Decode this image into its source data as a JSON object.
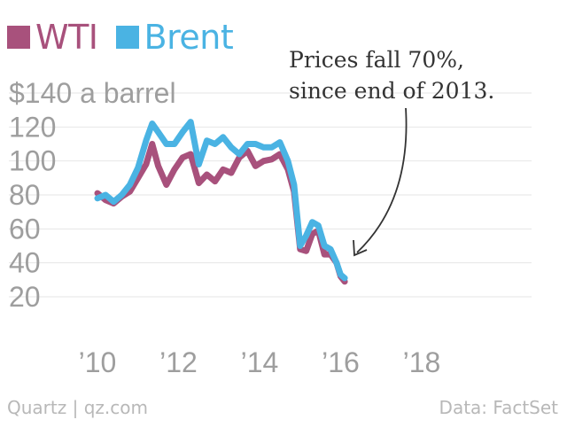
{
  "legend": [
    {
      "name": "WTI",
      "color": "#a8517c"
    },
    {
      "name": "Brent",
      "color": "#4ab3e3"
    }
  ],
  "annotation": {
    "line1": "Prices fall 70%,",
    "line2": "since end of 2013."
  },
  "footer": {
    "source": "Quartz | qz.com",
    "data_credit": "Data: FactSet"
  },
  "colors": {
    "wti": "#a8517c",
    "brent": "#4ab3e3",
    "axis_text": "#9e9e9e",
    "grid": "#e6e6e6",
    "arrow": "#333333"
  },
  "chart_data": {
    "type": "line",
    "title": "",
    "xlabel": "",
    "ylabel": "",
    "ylim": [
      20,
      140
    ],
    "xlim": [
      2010,
      2018.5
    ],
    "y_ticks": [
      {
        "value": 140,
        "label": "$140 a barrel"
      },
      {
        "value": 120,
        "label": "120"
      },
      {
        "value": 100,
        "label": "100"
      },
      {
        "value": 80,
        "label": "80"
      },
      {
        "value": 60,
        "label": "60"
      },
      {
        "value": 40,
        "label": "40"
      },
      {
        "value": 20,
        "label": "20"
      }
    ],
    "x_ticks": [
      {
        "value": 2010,
        "label": "’10"
      },
      {
        "value": 2012,
        "label": "’12"
      },
      {
        "value": 2014,
        "label": "’14"
      },
      {
        "value": 2016,
        "label": "’16"
      },
      {
        "value": 2018,
        "label": "’18"
      }
    ],
    "grid": true,
    "legend_position": "top-left",
    "series": [
      {
        "name": "WTI",
        "color": "#a8517c",
        "x": [
          2010.0,
          2010.2,
          2010.4,
          2010.6,
          2010.8,
          2011.0,
          2011.2,
          2011.35,
          2011.5,
          2011.7,
          2011.9,
          2012.1,
          2012.3,
          2012.5,
          2012.7,
          2012.9,
          2013.1,
          2013.3,
          2013.5,
          2013.7,
          2013.9,
          2014.1,
          2014.3,
          2014.5,
          2014.7,
          2014.85,
          2015.0,
          2015.15,
          2015.3,
          2015.45,
          2015.6,
          2015.75,
          2015.9,
          2016.0,
          2016.1
        ],
        "y": [
          81,
          77,
          75,
          79,
          82,
          90,
          98,
          110,
          97,
          86,
          95,
          102,
          104,
          87,
          92,
          88,
          95,
          93,
          102,
          106,
          97,
          100,
          101,
          104,
          95,
          82,
          48,
          47,
          57,
          59,
          45,
          45,
          40,
          32,
          29
        ]
      },
      {
        "name": "Brent",
        "color": "#4ab3e3",
        "x": [
          2010.0,
          2010.2,
          2010.4,
          2010.6,
          2010.8,
          2011.0,
          2011.2,
          2011.35,
          2011.5,
          2011.7,
          2011.9,
          2012.1,
          2012.3,
          2012.5,
          2012.7,
          2012.9,
          2013.1,
          2013.3,
          2013.5,
          2013.7,
          2013.9,
          2014.1,
          2014.3,
          2014.5,
          2014.7,
          2014.85,
          2015.0,
          2015.15,
          2015.3,
          2015.45,
          2015.6,
          2015.75,
          2015.9,
          2016.0,
          2016.1
        ],
        "y": [
          78,
          80,
          76,
          80,
          86,
          96,
          112,
          122,
          117,
          110,
          110,
          117,
          123,
          98,
          112,
          110,
          114,
          108,
          104,
          110,
          110,
          108,
          108,
          111,
          100,
          86,
          50,
          56,
          64,
          62,
          50,
          48,
          40,
          33,
          31
        ]
      }
    ]
  }
}
